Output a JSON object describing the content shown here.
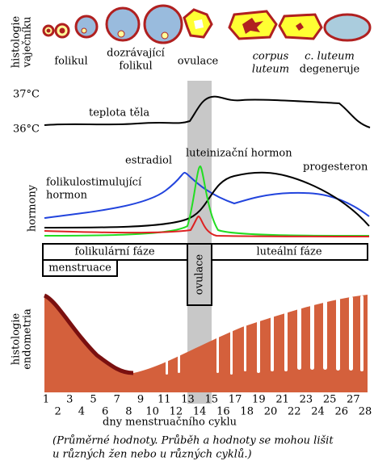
{
  "ovary": {
    "label": [
      "histologie",
      "vaječníku"
    ],
    "stages": [
      [
        "folikul"
      ],
      [
        "dozrávající",
        "folikul"
      ],
      [
        "ovulace"
      ],
      [
        "corpus",
        "luteum"
      ],
      [
        "c. luteum",
        "degeneruje"
      ]
    ]
  },
  "temperature": {
    "ticks": [
      "37°C",
      "36°C"
    ],
    "label": "teplota těla"
  },
  "hormones": {
    "axis_label": "hormony",
    "estradiol": "estradiol",
    "fsh": [
      "folikulostimulující",
      "hormon"
    ],
    "lh": "luteinizační hormon",
    "progesterone": "progesteron"
  },
  "phases": {
    "follicular": "folikulární fáze",
    "menstruation": "menstruace",
    "ovulation": "ovulace",
    "luteal": "luteální fáze"
  },
  "endometrium": {
    "label": [
      "histologie",
      "endometria"
    ]
  },
  "days": [
    1,
    2,
    3,
    4,
    5,
    6,
    7,
    8,
    9,
    10,
    11,
    12,
    13,
    14,
    15,
    16,
    17,
    18,
    19,
    20,
    21,
    22,
    23,
    24,
    25,
    26,
    27,
    28
  ],
  "x_label": "dny menstruačního cyklu",
  "note": [
    "(Průměrné hodnoty. Průběh a hodnoty se mohou lišit",
    "u různých žen nebo u různých cyklů.)"
  ]
}
